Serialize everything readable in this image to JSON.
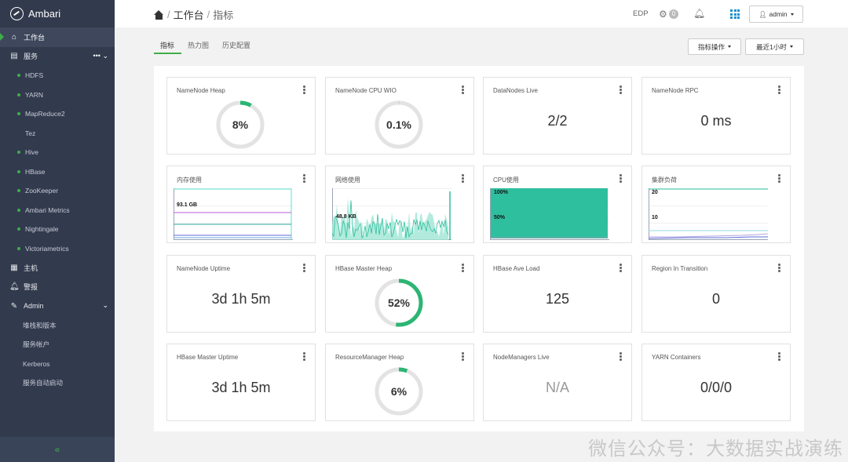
{
  "app": {
    "title": "Ambari"
  },
  "sidebar": {
    "items": [
      {
        "key": "dashboard",
        "label": "工作台",
        "icon": "home-icon",
        "type": "top",
        "active": true
      },
      {
        "key": "services",
        "label": "服务",
        "icon": "briefcase-icon",
        "type": "top",
        "extra": "••• ⌄"
      },
      {
        "key": "hdfs",
        "label": "HDFS",
        "type": "sub",
        "dot": true
      },
      {
        "key": "yarn",
        "label": "YARN",
        "type": "sub",
        "dot": true
      },
      {
        "key": "mapreduce2",
        "label": "MapReduce2",
        "type": "sub",
        "dot": true
      },
      {
        "key": "tez",
        "label": "Tez",
        "type": "sub",
        "dot": false
      },
      {
        "key": "hive",
        "label": "Hive",
        "type": "sub",
        "dot": true
      },
      {
        "key": "hbase",
        "label": "HBase",
        "type": "sub",
        "dot": true
      },
      {
        "key": "zookeeper",
        "label": "ZooKeeper",
        "type": "sub",
        "dot": true
      },
      {
        "key": "ambari-metrics",
        "label": "Ambari Metrics",
        "type": "sub",
        "dot": true
      },
      {
        "key": "nightingale",
        "label": "Nightingale",
        "type": "sub",
        "dot": true
      },
      {
        "key": "victoriametrics",
        "label": "Victoriametrics",
        "type": "sub",
        "dot": true
      },
      {
        "key": "hosts",
        "label": "主机",
        "icon": "server-icon",
        "type": "top"
      },
      {
        "key": "alerts",
        "label": "警报",
        "icon": "bell-icon",
        "type": "top"
      },
      {
        "key": "admin",
        "label": "Admin",
        "icon": "wrench-icon",
        "type": "top",
        "extra": "⌄"
      },
      {
        "key": "stack-version",
        "label": "堆栈和版本",
        "type": "plain"
      },
      {
        "key": "service-accounts",
        "label": "服务帐户",
        "type": "plain"
      },
      {
        "key": "kerberos",
        "label": "Kerberos",
        "type": "plain"
      },
      {
        "key": "service-autostart",
        "label": "服务自动启动",
        "type": "plain"
      }
    ],
    "collapse": "«"
  },
  "topbar": {
    "breadcrumb": {
      "root": "工作台",
      "current": "指标",
      "sep": "/"
    },
    "cluster": "EDP",
    "ops_count": "0",
    "admin_label": "admin"
  },
  "tabs": [
    {
      "label": "指标",
      "active": true
    },
    {
      "label": "热力图"
    },
    {
      "label": "历史配置"
    }
  ],
  "actions": {
    "metrics_ops": "指标操作",
    "time_range": "最近1小时"
  },
  "colors": {
    "accent": "#3fae49",
    "sidebar": "#323a4d",
    "teal": "#2ebf9e"
  },
  "widgets": [
    {
      "key": "namenode-heap",
      "title": "NameNode Heap",
      "type": "donut",
      "value": "8%",
      "fraction": 0.08
    },
    {
      "key": "namenode-cpu-wio",
      "title": "NameNode CPU WIO",
      "type": "donut",
      "value": "0.1%",
      "fraction": 0.001
    },
    {
      "key": "datanodes-live",
      "title": "DataNodes Live",
      "type": "text",
      "value": "2/2"
    },
    {
      "key": "namenode-rpc",
      "title": "NameNode RPC",
      "type": "text",
      "value": "0 ms"
    },
    {
      "key": "memory-usage",
      "title": "内存使用",
      "type": "chart",
      "chart": "memory",
      "label": "93.1 GB"
    },
    {
      "key": "network-usage",
      "title": "网络使用",
      "type": "chart",
      "chart": "network",
      "label": "48.8 KB"
    },
    {
      "key": "cpu-usage",
      "title": "CPU使用",
      "type": "chart",
      "chart": "cpu",
      "label": "100%",
      "label2": "50%"
    },
    {
      "key": "cluster-load",
      "title": "集群负荷",
      "type": "chart",
      "chart": "load",
      "label": "20",
      "label2": "10"
    },
    {
      "key": "namenode-uptime",
      "title": "NameNode Uptime",
      "type": "text",
      "value": "3d 1h 5m"
    },
    {
      "key": "hbase-master-heap",
      "title": "HBase Master Heap",
      "type": "donut",
      "value": "52%",
      "fraction": 0.52
    },
    {
      "key": "hbase-ave-load",
      "title": "HBase Ave Load",
      "type": "text",
      "value": "125"
    },
    {
      "key": "region-in-transition",
      "title": "Region In Transition",
      "type": "text",
      "value": "0"
    },
    {
      "key": "hbase-master-uptime",
      "title": "HBase Master Uptime",
      "type": "text",
      "value": "3d 1h 5m"
    },
    {
      "key": "resourcemanager-heap",
      "title": "ResourceManager Heap",
      "type": "donut",
      "value": "6%",
      "fraction": 0.06
    },
    {
      "key": "nodemanagers-live",
      "title": "NodeManagers Live",
      "type": "text",
      "value": "N/A",
      "na": true
    },
    {
      "key": "yarn-containers",
      "title": "YARN Containers",
      "type": "text",
      "value": "0/0/0"
    }
  ],
  "watermark": "微信公众号：大数据实战演练"
}
